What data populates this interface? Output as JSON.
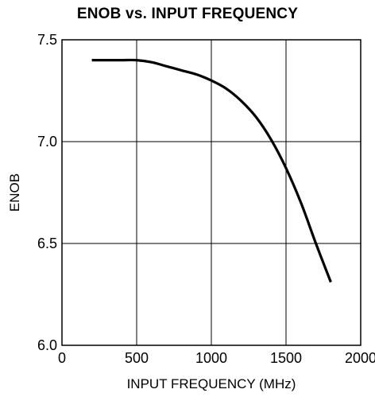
{
  "chart_data": {
    "type": "line",
    "title": "ENOB vs. INPUT FREQUENCY",
    "xlabel": "INPUT FREQUENCY (MHz)",
    "ylabel": "ENOB",
    "xlim": [
      0,
      2000
    ],
    "ylim": [
      6.0,
      7.5
    ],
    "xticks": [
      0,
      500,
      1000,
      1500,
      2000
    ],
    "xtick_labels": [
      "0",
      "500",
      "1000",
      "1500",
      "2000"
    ],
    "yticks": [
      6.0,
      6.5,
      7.0,
      7.5
    ],
    "ytick_labels": [
      "6.0",
      "6.5",
      "7.0",
      "7.5"
    ],
    "grid": true,
    "series": [
      {
        "x": [
          200,
          300,
          400,
          500,
          600,
          700,
          800,
          900,
          1000,
          1100,
          1200,
          1300,
          1400,
          1500,
          1600,
          1700,
          1800
        ],
        "y": [
          7.4,
          7.4,
          7.4,
          7.4,
          7.39,
          7.37,
          7.35,
          7.33,
          7.3,
          7.26,
          7.2,
          7.12,
          7.01,
          6.87,
          6.7,
          6.5,
          6.31
        ],
        "color": "#000000"
      }
    ]
  }
}
